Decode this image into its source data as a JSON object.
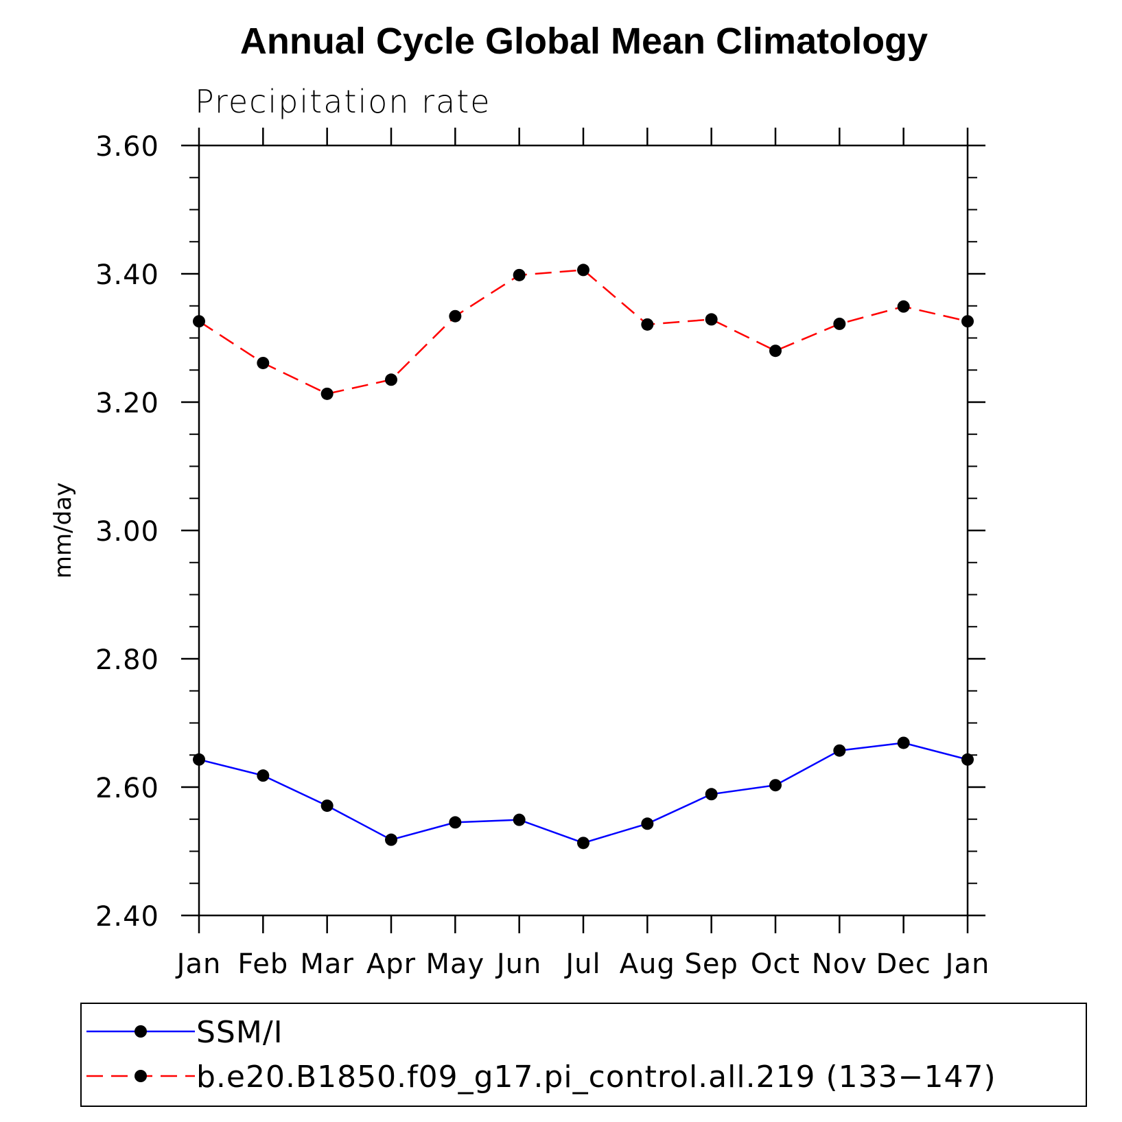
{
  "chart_data": {
    "type": "line",
    "title": "Annual Cycle Global Mean Climatology",
    "subtitle": "Precipitation rate",
    "xlabel": "",
    "ylabel": "mm/day",
    "categories": [
      "Jan",
      "Feb",
      "Mar",
      "Apr",
      "May",
      "Jun",
      "Jul",
      "Aug",
      "Sep",
      "Oct",
      "Nov",
      "Dec",
      "Jan"
    ],
    "ylim": [
      2.4,
      3.6
    ],
    "yticks": [
      "2.40",
      "2.60",
      "2.80",
      "3.00",
      "3.20",
      "3.40",
      "3.60"
    ],
    "grid": false,
    "legend_position": "bottom",
    "series": [
      {
        "name": "SSM/I",
        "color": "#0000ff",
        "line_style": "solid",
        "marker": "filled-circle",
        "values": [
          2.643,
          2.618,
          2.571,
          2.518,
          2.545,
          2.549,
          2.513,
          2.543,
          2.589,
          2.603,
          2.657,
          2.669,
          2.643
        ]
      },
      {
        "name": "b.e20.B1850.f09_g17.pi_control.all.219 (133−147)",
        "color": "#ff0000",
        "line_style": "dashed",
        "marker": "filled-circle",
        "values": [
          3.326,
          3.261,
          3.213,
          3.235,
          3.334,
          3.398,
          3.406,
          3.321,
          3.329,
          3.28,
          3.322,
          3.349,
          3.326
        ]
      }
    ]
  }
}
